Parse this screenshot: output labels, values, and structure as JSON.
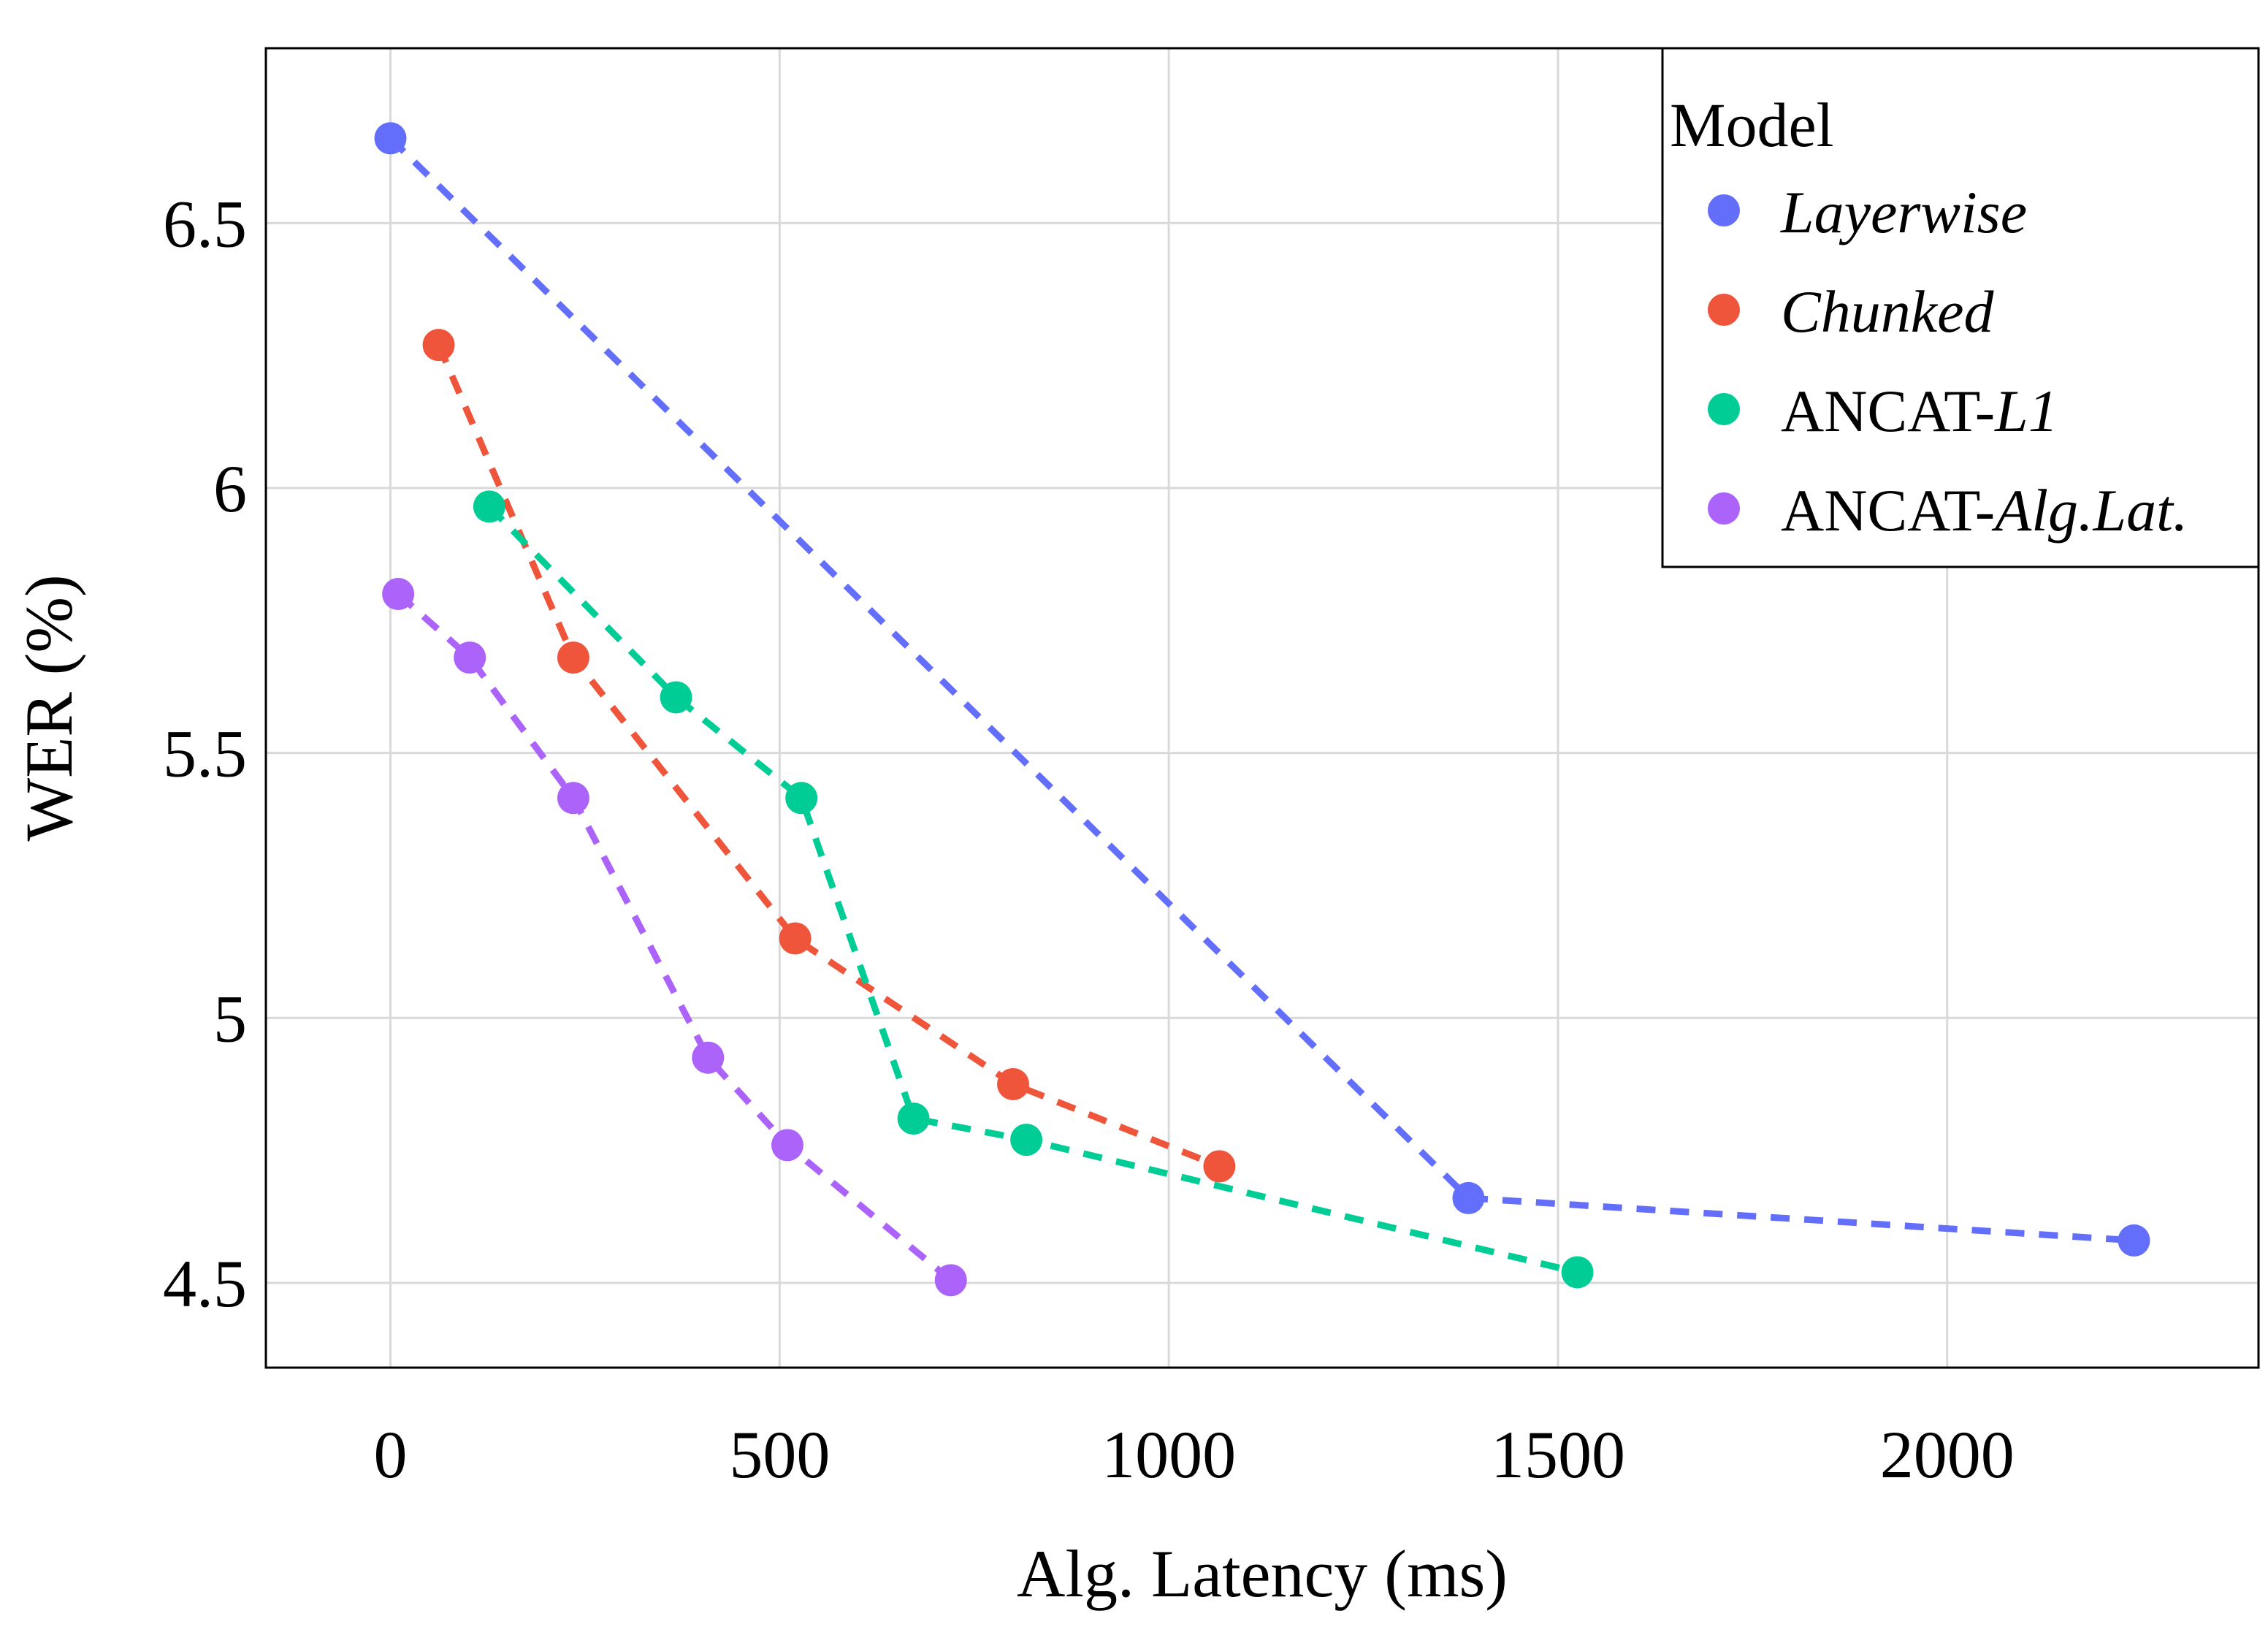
{
  "chart_data": {
    "type": "line",
    "title": "",
    "xlabel": "Alg. Latency (ms)",
    "ylabel": "WER (%)",
    "xlim": [
      -160,
      2400
    ],
    "ylim": [
      4.34,
      6.83
    ],
    "xticks": [
      0,
      500,
      1000,
      1500,
      2000
    ],
    "yticks": [
      4.5,
      5,
      5.5,
      6,
      6.5
    ],
    "xtick_labels": [
      "0",
      "500",
      "1000",
      "1500",
      "2000"
    ],
    "ytick_labels": [
      "4.5",
      "5",
      "5.5",
      "6",
      "6.5"
    ],
    "grid": true,
    "legend": {
      "title": "Model",
      "position": "top-right",
      "entries": [
        {
          "prefix": "",
          "italic": "Layerwise"
        },
        {
          "prefix": "",
          "italic": "Chunked"
        },
        {
          "prefix": "ANCAT-",
          "italic": "L1"
        },
        {
          "prefix": "ANCAT-",
          "italic": "Alg.Lat."
        }
      ]
    },
    "series": [
      {
        "name": "Layerwise",
        "color": "#636EFA",
        "x": [
          0,
          1385,
          2240
        ],
        "y": [
          6.66,
          4.66,
          4.58
        ]
      },
      {
        "name": "Chunked",
        "color": "#EF553B",
        "x": [
          62,
          235,
          520,
          800,
          1065
        ],
        "y": [
          6.27,
          5.68,
          5.15,
          4.875,
          4.72
        ]
      },
      {
        "name": "ANCAT-L1",
        "color": "#00CC96",
        "x": [
          127,
          367,
          528,
          672,
          817,
          1525
        ],
        "y": [
          5.965,
          5.605,
          5.415,
          4.81,
          4.77,
          4.52
        ]
      },
      {
        "name": "ANCAT-Alg.Lat.",
        "color": "#AB63FA",
        "x": [
          10,
          102,
          235,
          408,
          510,
          720
        ],
        "y": [
          5.8,
          5.68,
          5.415,
          4.925,
          4.76,
          4.505
        ]
      }
    ]
  }
}
